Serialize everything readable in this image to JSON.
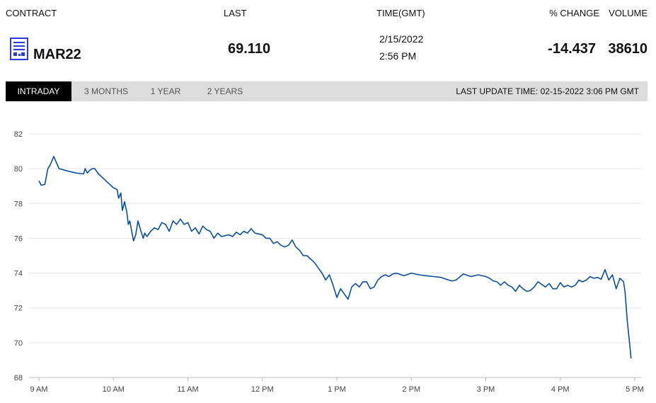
{
  "header": {
    "contract": "CONTRACT",
    "last": "LAST",
    "time": "TIME(GMT)",
    "change": "% CHANGE",
    "volume": "VOLUME"
  },
  "quote": {
    "contract": "MAR22",
    "contract_icon": "document-chart-icon",
    "last": "69.110",
    "date": "2/15/2022",
    "time": "2:56 PM",
    "change": "-14.437",
    "volume": "38610"
  },
  "tabs": [
    {
      "label": "INTRADAY",
      "active": true
    },
    {
      "label": "3 MONTHS",
      "active": false
    },
    {
      "label": "1 YEAR",
      "active": false
    },
    {
      "label": "2 YEARS",
      "active": false
    }
  ],
  "last_update": "LAST UPDATE TIME: 02-15-2022 3:06 PM GMT",
  "colors": {
    "line": "#0a4f9e",
    "icon": "#2b3bd6",
    "grid": "#e6e6e6"
  },
  "chart_data": {
    "type": "line",
    "xlabel": "",
    "ylabel": "",
    "x_unit": "hours",
    "xlim": [
      9.0,
      17.0
    ],
    "ylim": [
      68,
      82
    ],
    "x_ticks": [
      {
        "value": 9,
        "label": "9 AM"
      },
      {
        "value": 10,
        "label": "10 AM"
      },
      {
        "value": 11,
        "label": "11 AM"
      },
      {
        "value": 12,
        "label": "12 PM"
      },
      {
        "value": 13,
        "label": "1 PM"
      },
      {
        "value": 14,
        "label": "2 PM"
      },
      {
        "value": 15,
        "label": "3 PM"
      },
      {
        "value": 16,
        "label": "4 PM"
      },
      {
        "value": 17,
        "label": "5 PM"
      }
    ],
    "y_ticks": [
      68,
      70,
      72,
      74,
      76,
      78,
      80,
      82
    ],
    "grid": "horizontal",
    "series": [
      {
        "x": [
          9.0,
          9.03,
          9.08,
          9.12,
          9.15,
          9.2,
          9.27,
          9.4,
          9.5,
          9.6,
          9.62,
          9.65,
          9.68,
          9.72,
          9.75,
          9.8,
          9.9,
          10.0,
          10.05,
          10.07,
          10.1,
          10.12,
          10.15,
          10.18,
          10.2,
          10.22,
          10.25,
          10.27,
          10.3,
          10.33,
          10.37,
          10.4,
          10.42,
          10.45,
          10.5,
          10.55,
          10.6,
          10.65,
          10.7,
          10.75,
          10.8,
          10.85,
          10.9,
          10.95,
          11.0,
          11.05,
          11.1,
          11.15,
          11.2,
          11.25,
          11.3,
          11.35,
          11.4,
          11.45,
          11.5,
          11.55,
          11.6,
          11.65,
          11.7,
          11.75,
          11.8,
          11.85,
          11.9,
          11.95,
          12.0,
          12.05,
          12.1,
          12.15,
          12.2,
          12.25,
          12.3,
          12.35,
          12.4,
          12.45,
          12.5,
          12.55,
          12.6,
          12.65,
          12.7,
          12.75,
          12.8,
          12.85,
          12.9,
          12.95,
          13.0,
          13.05,
          13.1,
          13.15,
          13.2,
          13.25,
          13.3,
          13.35,
          13.4,
          13.45,
          13.5,
          13.55,
          13.6,
          13.65,
          13.7,
          13.75,
          13.8,
          13.9,
          14.0,
          14.1,
          14.2,
          14.3,
          14.4,
          14.5,
          14.55,
          14.6,
          14.7,
          14.8,
          14.9,
          15.0,
          15.05,
          15.1,
          15.15,
          15.2,
          15.25,
          15.3,
          15.35,
          15.4,
          15.45,
          15.5,
          15.55,
          15.6,
          15.65,
          15.7,
          15.75,
          15.8,
          15.85,
          15.9,
          15.95,
          16.0,
          16.05,
          16.1,
          16.15,
          16.2,
          16.25,
          16.3,
          16.35,
          16.4,
          16.45,
          16.5,
          16.55,
          16.6,
          16.65,
          16.7,
          16.75,
          16.8,
          16.85,
          16.87,
          16.9,
          16.93,
          16.95
        ],
        "y": [
          79.3,
          79.05,
          79.1,
          80.0,
          80.2,
          80.7,
          80.0,
          79.85,
          79.75,
          79.7,
          80.0,
          79.75,
          79.9,
          80.0,
          80.0,
          79.7,
          79.3,
          78.9,
          78.8,
          78.3,
          78.6,
          77.6,
          78.1,
          77.5,
          76.8,
          77.0,
          76.3,
          75.85,
          76.2,
          77.0,
          76.4,
          76.0,
          76.3,
          76.1,
          76.4,
          76.6,
          76.5,
          76.9,
          76.8,
          76.4,
          77.0,
          76.8,
          77.1,
          76.8,
          76.9,
          76.4,
          76.6,
          76.25,
          76.7,
          76.5,
          76.4,
          76.0,
          76.3,
          76.1,
          76.15,
          76.2,
          76.1,
          76.35,
          76.2,
          76.4,
          76.3,
          76.55,
          76.3,
          76.25,
          76.2,
          76.0,
          76.0,
          75.7,
          75.8,
          75.6,
          75.5,
          75.6,
          75.9,
          75.5,
          75.3,
          75.0,
          75.0,
          74.8,
          74.6,
          74.3,
          74.0,
          73.6,
          73.9,
          73.3,
          72.6,
          73.1,
          72.8,
          72.5,
          73.2,
          73.4,
          73.2,
          73.5,
          73.5,
          73.1,
          73.2,
          73.6,
          73.8,
          73.9,
          73.8,
          73.95,
          74.0,
          73.85,
          74.0,
          73.9,
          73.85,
          73.8,
          73.75,
          73.6,
          73.55,
          73.6,
          73.95,
          73.8,
          73.9,
          73.8,
          73.7,
          73.55,
          73.5,
          73.3,
          73.5,
          73.3,
          73.2,
          72.95,
          73.3,
          73.1,
          72.95,
          73.0,
          73.2,
          73.5,
          73.35,
          73.2,
          73.4,
          73.1,
          73.1,
          73.45,
          73.2,
          73.3,
          73.2,
          73.3,
          73.6,
          73.5,
          73.6,
          73.8,
          73.7,
          73.75,
          73.65,
          74.2,
          73.6,
          73.9,
          73.1,
          73.7,
          73.5,
          72.9,
          71.2,
          70.0,
          69.1
        ]
      }
    ]
  }
}
